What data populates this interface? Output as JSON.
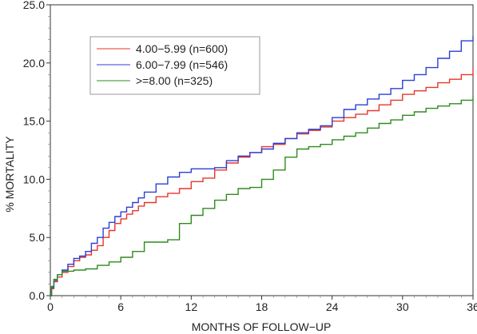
{
  "chart_data": {
    "type": "line",
    "title": "",
    "xlabel": "MONTHS OF FOLLOW−UP",
    "ylabel": "% MORTALITY",
    "xlim": [
      0,
      36
    ],
    "ylim": [
      0,
      25
    ],
    "x_ticks": [
      0,
      6,
      12,
      18,
      24,
      30,
      36
    ],
    "x_tick_labels": [
      "0",
      "6",
      "12",
      "18",
      "24",
      "30",
      "36"
    ],
    "y_ticks": [
      0,
      5,
      10,
      15,
      20,
      25
    ],
    "y_tick_labels": [
      "0.0",
      "5.0",
      "10.0",
      "15.0",
      "20.0",
      "25.0"
    ],
    "grid": false,
    "legend_position": "top-left",
    "series": [
      {
        "name": "4.00−5.99  (n=600)",
        "color": "#e8352b",
        "points": [
          [
            0,
            0
          ],
          [
            0.1,
            0.6
          ],
          [
            0.3,
            1.2
          ],
          [
            0.6,
            1.6
          ],
          [
            1,
            2.0
          ],
          [
            1.5,
            2.5
          ],
          [
            2,
            3.0
          ],
          [
            2.5,
            3.3
          ],
          [
            3,
            3.5
          ],
          [
            3.5,
            3.9
          ],
          [
            4,
            4.3
          ],
          [
            4.5,
            5.0
          ],
          [
            5,
            5.6
          ],
          [
            5.5,
            6.2
          ],
          [
            6,
            6.6
          ],
          [
            6.5,
            7.0
          ],
          [
            7,
            7.3
          ],
          [
            7.5,
            7.7
          ],
          [
            8,
            8.0
          ],
          [
            9,
            8.5
          ],
          [
            10,
            8.8
          ],
          [
            11,
            9.2
          ],
          [
            12,
            9.8
          ],
          [
            13,
            10.1
          ],
          [
            14,
            10.8
          ],
          [
            15,
            11.4
          ],
          [
            16,
            11.9
          ],
          [
            17,
            12.3
          ],
          [
            18,
            12.8
          ],
          [
            19,
            13.0
          ],
          [
            20,
            13.5
          ],
          [
            21,
            13.9
          ],
          [
            22,
            14.2
          ],
          [
            23,
            14.5
          ],
          [
            24,
            15.0
          ],
          [
            25,
            15.3
          ],
          [
            26,
            15.6
          ],
          [
            27,
            15.9
          ],
          [
            28,
            16.4
          ],
          [
            29,
            16.8
          ],
          [
            30,
            17.3
          ],
          [
            31,
            17.6
          ],
          [
            32,
            17.9
          ],
          [
            33,
            18.3
          ],
          [
            34,
            18.6
          ],
          [
            35,
            19.0
          ],
          [
            36,
            19.6
          ]
        ]
      },
      {
        "name": "6.00−7.99  (n=546)",
        "color": "#2b3fd6",
        "points": [
          [
            0,
            0
          ],
          [
            0.1,
            0.7
          ],
          [
            0.3,
            1.3
          ],
          [
            0.6,
            1.8
          ],
          [
            1,
            2.2
          ],
          [
            1.5,
            2.7
          ],
          [
            2,
            3.2
          ],
          [
            2.5,
            3.4
          ],
          [
            3,
            3.8
          ],
          [
            3.5,
            4.5
          ],
          [
            4,
            5.0
          ],
          [
            4.5,
            5.8
          ],
          [
            5,
            6.3
          ],
          [
            5.5,
            6.8
          ],
          [
            6,
            7.2
          ],
          [
            6.5,
            7.6
          ],
          [
            7,
            8.0
          ],
          [
            7.5,
            8.4
          ],
          [
            8,
            8.9
          ],
          [
            9,
            9.6
          ],
          [
            10,
            10.2
          ],
          [
            11,
            10.6
          ],
          [
            12,
            10.9
          ],
          [
            13,
            10.9
          ],
          [
            14,
            11.0
          ],
          [
            15,
            11.6
          ],
          [
            16,
            12.0
          ],
          [
            17,
            12.3
          ],
          [
            18,
            12.6
          ],
          [
            19,
            13.1
          ],
          [
            20,
            13.5
          ],
          [
            21,
            14.0
          ],
          [
            22,
            14.3
          ],
          [
            23,
            14.6
          ],
          [
            24,
            15.3
          ],
          [
            25,
            16.0
          ],
          [
            26,
            16.4
          ],
          [
            27,
            16.9
          ],
          [
            28,
            17.3
          ],
          [
            29,
            17.8
          ],
          [
            30,
            18.5
          ],
          [
            31,
            19.0
          ],
          [
            32,
            19.6
          ],
          [
            33,
            20.4
          ],
          [
            34,
            21.0
          ],
          [
            35,
            21.9
          ],
          [
            36,
            22.3
          ]
        ]
      },
      {
        "name": ">=8.00  (n=325)",
        "color": "#2e8b1f",
        "points": [
          [
            0,
            0
          ],
          [
            0.1,
            0.8
          ],
          [
            0.3,
            1.4
          ],
          [
            0.6,
            1.8
          ],
          [
            1,
            2.1
          ],
          [
            2,
            2.2
          ],
          [
            3,
            2.3
          ],
          [
            4,
            2.6
          ],
          [
            5,
            2.9
          ],
          [
            6,
            3.3
          ],
          [
            7,
            3.8
          ],
          [
            8,
            4.6
          ],
          [
            9,
            4.6
          ],
          [
            10,
            4.8
          ],
          [
            11,
            6.2
          ],
          [
            12,
            6.9
          ],
          [
            13,
            7.5
          ],
          [
            14,
            8.2
          ],
          [
            15,
            8.7
          ],
          [
            16,
            9.2
          ],
          [
            17,
            9.3
          ],
          [
            18,
            10.0
          ],
          [
            19,
            10.8
          ],
          [
            20,
            11.9
          ],
          [
            21,
            12.6
          ],
          [
            22,
            12.8
          ],
          [
            23,
            13.0
          ],
          [
            24,
            13.4
          ],
          [
            25,
            13.7
          ],
          [
            26,
            14.0
          ],
          [
            27,
            14.4
          ],
          [
            28,
            14.8
          ],
          [
            29,
            15.1
          ],
          [
            30,
            15.5
          ],
          [
            31,
            15.8
          ],
          [
            32,
            16.1
          ],
          [
            33,
            16.3
          ],
          [
            34,
            16.5
          ],
          [
            35,
            16.8
          ],
          [
            36,
            17.2
          ]
        ]
      }
    ]
  }
}
